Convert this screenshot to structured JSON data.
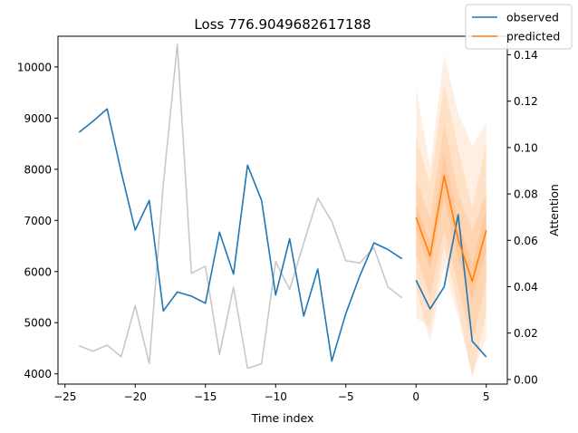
{
  "chart_data": {
    "type": "line",
    "title": "Loss 776.9049682617188",
    "xlabel": "Time index",
    "ylabel": "",
    "y2label": "Attention",
    "xlim": [
      -25.5,
      6.5
    ],
    "ylim": [
      3800,
      10600
    ],
    "y2lim": [
      -0.002,
      0.148
    ],
    "xticks": [
      -25,
      -20,
      -15,
      -10,
      -5,
      0,
      5
    ],
    "yticks": [
      4000,
      5000,
      6000,
      7000,
      8000,
      9000,
      10000
    ],
    "y2ticks": [
      0.0,
      0.02,
      0.04,
      0.06,
      0.08,
      0.1,
      0.12,
      0.14
    ],
    "y2ticklabels": [
      "0.00",
      "0.02",
      "0.04",
      "0.06",
      "0.08",
      "0.10",
      "0.12",
      "0.14"
    ],
    "grid": false,
    "legend_position": "top-right",
    "series": [
      {
        "name": "observed",
        "color": "#1f77b4",
        "x": [
          -24,
          -23,
          -22,
          -21,
          -20,
          -19,
          -18,
          -17,
          -16,
          -15,
          -14,
          -13,
          -12,
          -11,
          -10,
          -9,
          -8,
          -7,
          -6,
          -5,
          -4,
          -3,
          -2,
          -1
        ],
        "y": [
          8720,
          8940,
          9180,
          7950,
          6810,
          7390,
          5230,
          5600,
          5520,
          5380,
          6770,
          5950,
          8080,
          7390,
          5540,
          6640,
          5130,
          6050,
          4250,
          5180,
          5920,
          6560,
          6430,
          6250
        ]
      },
      {
        "name": "observed",
        "color": "#1f77b4",
        "x": [
          0,
          1,
          2,
          3,
          4,
          5
        ],
        "y": [
          5830,
          5270,
          5700,
          7110,
          4640,
          4330
        ]
      },
      {
        "name": "predicted",
        "color": "#ff7f0e",
        "x": [
          0,
          1,
          2,
          3,
          4,
          5
        ],
        "y": [
          7060,
          6300,
          7870,
          6630,
          5810,
          6810
        ]
      },
      {
        "name": "Attention",
        "axis": "right",
        "color": "#c8c8c8",
        "x": [
          -24,
          -23,
          -22,
          -21,
          -20,
          -19,
          -18,
          -17,
          -16,
          -15,
          -14,
          -13,
          -12,
          -11,
          -10,
          -9,
          -8,
          -7,
          -6,
          -5,
          -4,
          -3,
          -2,
          -1
        ],
        "y": [
          0.0145,
          0.0122,
          0.0148,
          0.0098,
          0.0318,
          0.0068,
          0.0842,
          0.1445,
          0.0458,
          0.0488,
          0.0108,
          0.0398,
          0.0048,
          0.0068,
          0.0508,
          0.0388,
          0.0588,
          0.0782,
          0.0682,
          0.0512,
          0.0502,
          0.0568,
          0.0398,
          0.0352
        ]
      }
    ],
    "prediction_intervals": {
      "color": "#ff7f0e",
      "x": [
        0,
        1,
        2,
        3,
        4,
        5
      ],
      "bands": [
        {
          "lower": [
            6800,
            6050,
            7450,
            6250,
            5450,
            6400
          ],
          "upper": [
            7320,
            6560,
            8300,
            7000,
            6160,
            7220
          ]
        },
        {
          "lower": [
            6350,
            5500,
            6800,
            5700,
            4650,
            5800
          ],
          "upper": [
            7800,
            7050,
            8900,
            7550,
            6800,
            7560
          ]
        },
        {
          "lower": [
            5700,
            4600,
            6100,
            5100,
            4000,
            4700
          ],
          "upper": [
            8650,
            7700,
            9700,
            8400,
            7250,
            8500
          ]
        },
        {
          "lower": [
            5100,
            4900,
            6500,
            5300,
            3900,
            5200
          ],
          "upper": [
            9600,
            8050,
            10250,
            9100,
            8450,
            8900
          ]
        }
      ]
    }
  }
}
